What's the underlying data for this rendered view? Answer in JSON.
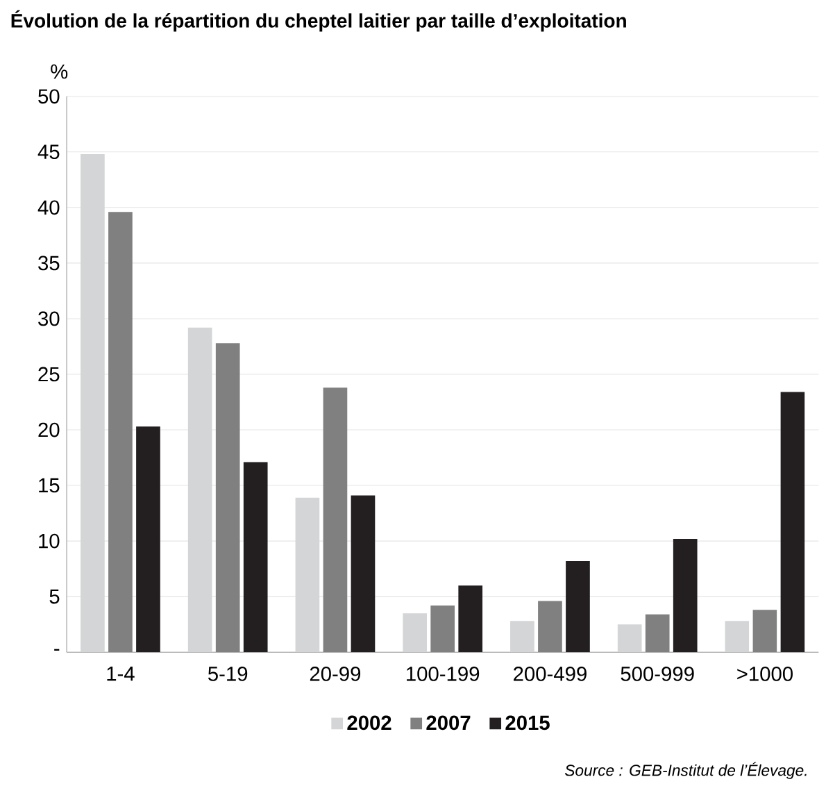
{
  "chart_data": {
    "type": "bar",
    "title": "Évolution de la répartition du cheptel laitier par taille d’exploitation",
    "ylabel": "%",
    "categories": [
      "1-4",
      "5-19",
      "20-99",
      "100-199",
      "200-499",
      "500-999",
      ">1000"
    ],
    "series": [
      {
        "name": "2002",
        "color": "#d4d5d6",
        "values": [
          44.8,
          29.2,
          13.9,
          3.5,
          2.8,
          2.5,
          2.8
        ]
      },
      {
        "name": "2007",
        "color": "#808080",
        "values": [
          39.6,
          27.8,
          23.8,
          4.2,
          4.6,
          3.4,
          3.8
        ]
      },
      {
        "name": "2015",
        "color": "#231f20",
        "values": [
          20.3,
          17.1,
          14.1,
          6.0,
          8.2,
          10.2,
          23.4
        ]
      }
    ],
    "ylim": [
      0,
      50
    ],
    "yticks": [
      {
        "value": 0,
        "label": "-"
      },
      5,
      10,
      15,
      20,
      25,
      30,
      35,
      40,
      45,
      50
    ],
    "grid": "y",
    "legend": "bottom",
    "annotations": [
      "Source : GEB-Institut de l’Élevage."
    ]
  }
}
